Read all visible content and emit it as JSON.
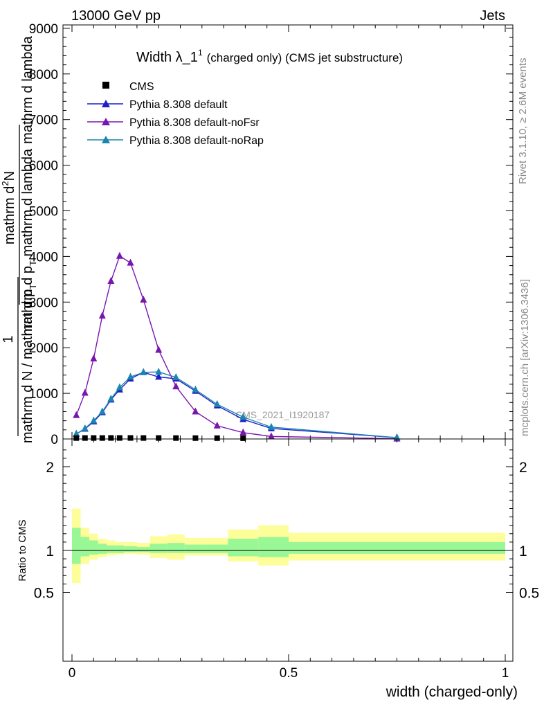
{
  "header": {
    "left": "13000 GeV pp",
    "right": "Jets"
  },
  "side_labels": {
    "rivet": "Rivet 3.1.10, ≥ 2.6M events",
    "mcplots": "mcplots.cern.ch [arXiv:1306.3436]"
  },
  "watermark": "CMS_2021_I1920187",
  "chart_data": [
    {
      "type": "line",
      "title_main": "Width λ_1",
      "title_sup": "1",
      "title_rest": "(charged only) (CMS jet substructure)",
      "ylabel_num_top": "mathrm d",
      "ylabel_num_N": "N",
      "ylabel_num_sup": "2",
      "ylabel_num_rest": "mathrm d lambda",
      "ylabel_den_part1": "mathrm d p",
      "ylabel_den_T": "T",
      "ylabel_den_part2": " mathrm d lambda",
      "ylabel_one": "1",
      "ylabel_left_bottom": "mathrm d N / mathrm d p",
      "ylabel_left_T": "T",
      "ylim": [
        0,
        9000
      ],
      "xlim": [
        0,
        1
      ],
      "y_ticks": [
        {
          "value": 0,
          "label": "0"
        },
        {
          "value": 1000,
          "label": "1000"
        },
        {
          "value": 2000,
          "label": "2000"
        },
        {
          "value": 3000,
          "label": "3000"
        },
        {
          "value": 4000,
          "label": "4000"
        },
        {
          "value": 5000,
          "label": "5000"
        },
        {
          "value": 6000,
          "label": "6000"
        },
        {
          "value": 7000,
          "label": "7000"
        },
        {
          "value": 8000,
          "label": "8000"
        },
        {
          "value": 9000,
          "label": "9000"
        }
      ],
      "legend": [
        {
          "label": "CMS",
          "color": "#000000",
          "marker": "square"
        },
        {
          "label": "Pythia 8.308 default",
          "color": "#1f1fc8",
          "marker": "triangle"
        },
        {
          "label": "Pythia 8.308 default-noFsr",
          "color": "#7a16b0",
          "marker": "triangle"
        },
        {
          "label": "Pythia 8.308 default-noRap",
          "color": "#1a85b0",
          "marker": "triangle"
        }
      ],
      "cms": {
        "x": [
          0.01,
          0.03,
          0.05,
          0.07,
          0.09,
          0.11,
          0.135,
          0.165,
          0.2,
          0.24,
          0.285,
          0.335,
          0.395
        ],
        "y": [
          5,
          6,
          6,
          6,
          7,
          7,
          7,
          6,
          6,
          5,
          4,
          3,
          2
        ]
      },
      "series": [
        {
          "name": "Pythia 8.308 default",
          "color": "#1f1fc8",
          "x": [
            0.01,
            0.03,
            0.05,
            0.07,
            0.09,
            0.11,
            0.135,
            0.165,
            0.2,
            0.24,
            0.285,
            0.335,
            0.395,
            0.46,
            0.75
          ],
          "y": [
            110,
            220,
            380,
            580,
            860,
            1080,
            1320,
            1460,
            1360,
            1320,
            1050,
            730,
            430,
            230,
            30
          ]
        },
        {
          "name": "Pythia 8.308 default-noFsr",
          "color": "#7a16b0",
          "x": [
            0.01,
            0.03,
            0.05,
            0.07,
            0.09,
            0.11,
            0.135,
            0.165,
            0.2,
            0.24,
            0.285,
            0.335,
            0.395,
            0.46,
            0.75
          ],
          "y": [
            520,
            1010,
            1760,
            2700,
            3460,
            4010,
            3860,
            3050,
            1950,
            1150,
            600,
            290,
            140,
            55,
            5
          ]
        },
        {
          "name": "Pythia 8.308 default-noRap",
          "color": "#1a85b0",
          "x": [
            0.01,
            0.03,
            0.05,
            0.07,
            0.09,
            0.11,
            0.135,
            0.165,
            0.2,
            0.24,
            0.285,
            0.335,
            0.395,
            0.46,
            0.75
          ],
          "y": [
            110,
            230,
            400,
            600,
            880,
            1130,
            1360,
            1460,
            1470,
            1350,
            1080,
            760,
            480,
            260,
            30
          ]
        }
      ]
    },
    {
      "type": "area",
      "ylabel": "Ratio to CMS",
      "xlabel": "width (charged-only)",
      "ylim": [
        0.4,
        2.3
      ],
      "xlim": [
        0,
        1
      ],
      "y_ticks": [
        {
          "value": 0.5,
          "label": "0.5"
        },
        {
          "value": 1,
          "label": "1"
        },
        {
          "value": 2,
          "label": "2"
        }
      ],
      "x_ticks": [
        {
          "value": 0,
          "label": "0"
        },
        {
          "value": 0.5,
          "label": "0.5"
        },
        {
          "value": 1,
          "label": "1"
        }
      ],
      "bins": [
        0,
        0.02,
        0.04,
        0.06,
        0.08,
        0.1,
        0.12,
        0.15,
        0.18,
        0.22,
        0.26,
        0.31,
        0.36,
        0.43,
        0.5,
        1.0
      ],
      "stat_lo": [
        0.84,
        0.93,
        0.95,
        0.96,
        0.97,
        0.97,
        0.98,
        0.98,
        0.97,
        0.97,
        0.97,
        0.97,
        0.93,
        0.92,
        0.96
      ],
      "stat_hi": [
        1.27,
        1.16,
        1.12,
        1.08,
        1.06,
        1.06,
        1.05,
        1.04,
        1.08,
        1.09,
        1.07,
        1.07,
        1.14,
        1.16,
        1.1
      ],
      "tot_lo": [
        0.61,
        0.84,
        0.89,
        0.92,
        0.94,
        0.95,
        0.96,
        0.95,
        0.91,
        0.89,
        0.94,
        0.94,
        0.87,
        0.82,
        0.88
      ],
      "tot_hi": [
        1.5,
        1.27,
        1.2,
        1.14,
        1.12,
        1.1,
        1.1,
        1.09,
        1.17,
        1.19,
        1.15,
        1.15,
        1.25,
        1.3,
        1.21
      ],
      "stat_color": "#99f796",
      "tot_color": "#fdfd99"
    }
  ]
}
